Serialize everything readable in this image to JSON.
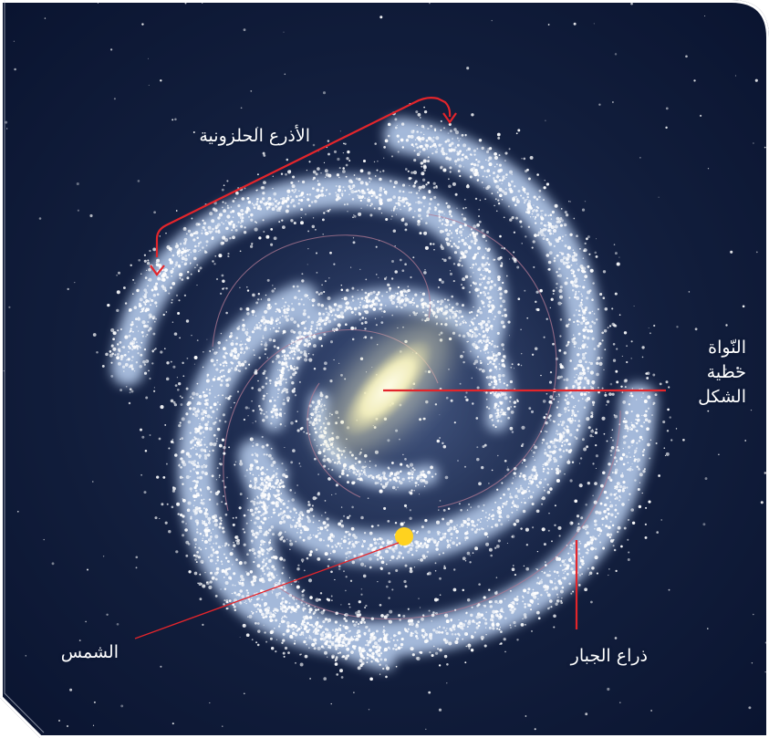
{
  "labels": {
    "spiral_arms": "الأذرع الحلزونية",
    "nucleus_line1": "النّواة",
    "nucleus_line2": "خطية",
    "nucleus_line3": "الشكل",
    "sun": "الشمس",
    "orion_arm": "ذراع الجبار"
  },
  "colors": {
    "background": "#0c1833",
    "arm": "#a9bedc",
    "core": "#f4f1c4",
    "sun": "#ffd21f",
    "leader_line": "#e3252b"
  }
}
